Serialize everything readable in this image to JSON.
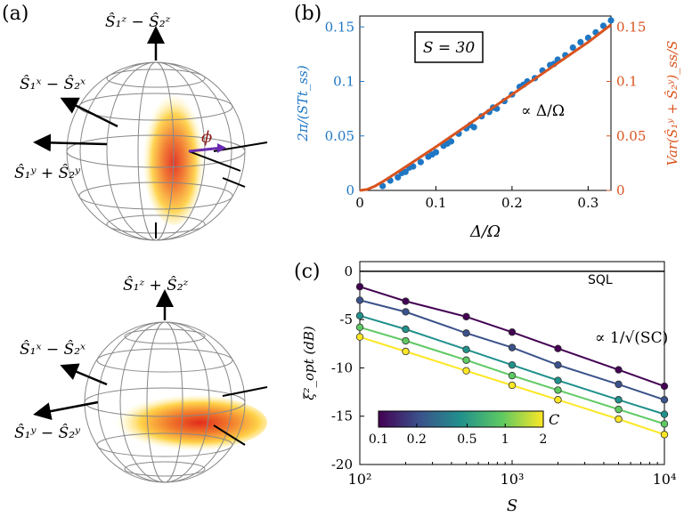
{
  "panel_labels": {
    "a": "(a)",
    "b": "(b)",
    "c": "(c)"
  },
  "sphere_top": {
    "axis_z": "Ŝ₁ᶻ − Ŝ₂ᶻ",
    "axis_x": "Ŝ₁ˣ − Ŝ₂ˣ",
    "axis_y": "Ŝ₁ʸ + Ŝ₂ʸ",
    "angle_label": "ϕ"
  },
  "sphere_bottom": {
    "axis_z": "Ŝ₁ᶻ + Ŝ₂ᶻ",
    "axis_x": "Ŝ₁ˣ − Ŝ₂ˣ",
    "axis_y": "Ŝ₁ʸ − Ŝ₂ʸ"
  },
  "colors": {
    "blue": "#1f77c4",
    "orange": "#d9531e",
    "viridis": [
      "#440154",
      "#3b528b",
      "#21918c",
      "#5ec962",
      "#fde725"
    ]
  },
  "chart_data": [
    {
      "type": "scatter",
      "panel": "b",
      "box_label": "S = 30",
      "annotation": "∝ Δ/Ω",
      "xlabel": "Δ/Ω",
      "ylabel_left": "2π/(STt_ss)",
      "ylabel_right": "Var(Ŝ₁ʸ + Ŝ₂ʸ)_ss/S",
      "xlim": [
        0,
        0.33
      ],
      "ylim": [
        0,
        0.16
      ],
      "xticks": [
        0,
        0.1,
        0.2,
        0.3
      ],
      "xtick_labels": [
        "0",
        "0.1",
        "0.2",
        "0.3"
      ],
      "yticks": [
        0,
        0.05,
        0.1,
        0.15
      ],
      "ytick_labels": [
        "0",
        "0.05",
        "0.1",
        "0.15"
      ],
      "series": [
        {
          "kind": "points",
          "color": "#1f77c4",
          "x": [
            0.03,
            0.04,
            0.05,
            0.055,
            0.06,
            0.065,
            0.07,
            0.08,
            0.09,
            0.095,
            0.1,
            0.11,
            0.115,
            0.12,
            0.13,
            0.14,
            0.145,
            0.15,
            0.16,
            0.17,
            0.175,
            0.18,
            0.19,
            0.2,
            0.21,
            0.215,
            0.22,
            0.23,
            0.24,
            0.25,
            0.255,
            0.26,
            0.27,
            0.28,
            0.29,
            0.3,
            0.31,
            0.32,
            0.33
          ],
          "y": [
            0.004,
            0.009,
            0.012,
            0.016,
            0.017,
            0.021,
            0.022,
            0.026,
            0.031,
            0.033,
            0.035,
            0.041,
            0.043,
            0.045,
            0.052,
            0.057,
            0.06,
            0.058,
            0.068,
            0.072,
            0.076,
            0.075,
            0.082,
            0.088,
            0.095,
            0.097,
            0.1,
            0.103,
            0.11,
            0.115,
            0.116,
            0.12,
            0.124,
            0.131,
            0.136,
            0.14,
            0.145,
            0.151,
            0.156
          ]
        },
        {
          "kind": "line",
          "color": "#d9531e",
          "x": [
            0,
            0.01,
            0.02,
            0.03,
            0.05,
            0.1,
            0.15,
            0.2,
            0.25,
            0.3,
            0.33
          ],
          "y": [
            0,
            0.001,
            0.004,
            0.008,
            0.017,
            0.04,
            0.064,
            0.088,
            0.112,
            0.136,
            0.152
          ]
        }
      ]
    },
    {
      "type": "line",
      "panel": "c",
      "xlabel": "S",
      "ylabel": "ξ²_opt (dB)",
      "sql_label": "SQL",
      "annotation": "∝ 1/√(SC)",
      "colorbar_label": "C",
      "colorbar_ticks": [
        "0.1",
        "0.2",
        "0.5",
        "1",
        "2"
      ],
      "xscale": "log",
      "xlim": [
        100,
        10000
      ],
      "ylim": [
        -20,
        1
      ],
      "yticks": [
        0,
        -5,
        -10,
        -15,
        -20
      ],
      "ytick_labels": [
        "0",
        "-5",
        "-10",
        "-15",
        "-20"
      ],
      "xtick_labels": [
        "10²",
        "10³",
        "10⁴"
      ],
      "x": [
        100,
        200,
        500,
        1000,
        2000,
        5000,
        10000
      ],
      "series": [
        {
          "C": 0.1,
          "color": "#440154",
          "values": [
            -1.6,
            -3.1,
            -4.7,
            -6.3,
            -8.0,
            -10.2,
            -11.9
          ]
        },
        {
          "C": 0.2,
          "color": "#3b528b",
          "values": [
            -3.0,
            -4.2,
            -6.4,
            -7.9,
            -9.7,
            -11.7,
            -13.3
          ]
        },
        {
          "C": 0.5,
          "color": "#21918c",
          "values": [
            -4.6,
            -6.0,
            -8.1,
            -9.7,
            -11.3,
            -13.3,
            -14.8
          ]
        },
        {
          "C": 1,
          "color": "#5ec962",
          "values": [
            -5.8,
            -7.2,
            -9.2,
            -10.8,
            -12.3,
            -14.3,
            -15.8
          ]
        },
        {
          "C": 2,
          "color": "#fde725",
          "values": [
            -6.8,
            -8.3,
            -10.3,
            -11.8,
            -13.3,
            -15.3,
            -16.9
          ]
        }
      ]
    }
  ]
}
